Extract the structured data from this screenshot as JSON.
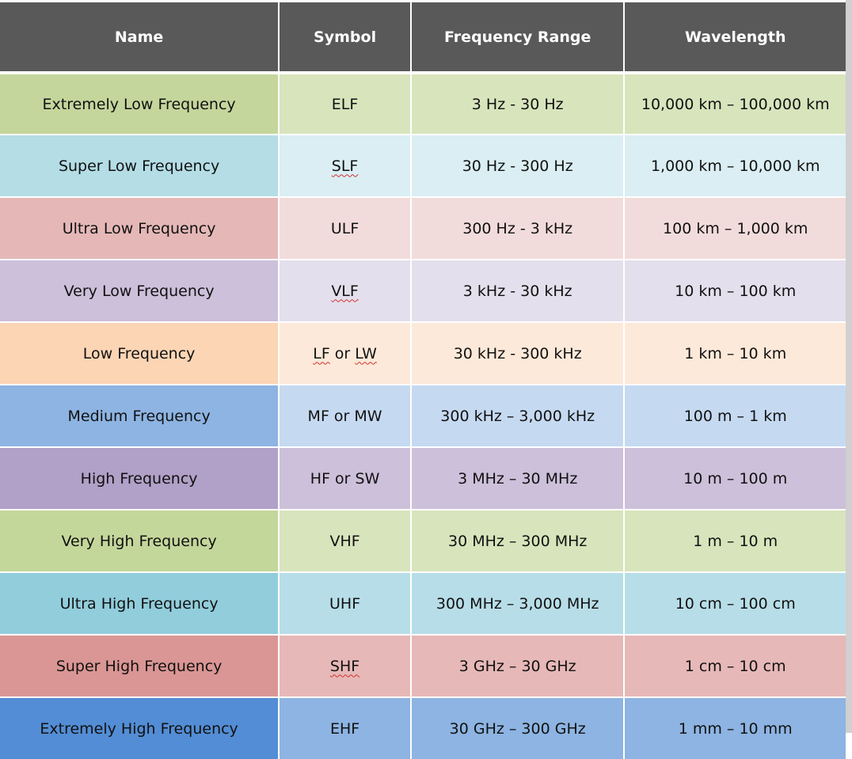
{
  "headers": [
    "Name",
    "Symbol",
    "Frequency Range",
    "Wavelength"
  ],
  "rows": [
    {
      "name": "Extremely Low Frequency",
      "symbol": "ELF",
      "range": "3 Hz - 30 Hz",
      "wavelength": "10,000 km – 100,000 km",
      "color_dark": "#c4d69c",
      "color_light": "#d8e4bc"
    },
    {
      "name": "Super Low Frequency",
      "symbol": "SLF",
      "range": "30 Hz - 300 Hz",
      "wavelength": "1,000 km – 10,000 km",
      "color_dark": "#b4dde6",
      "color_light": "#daeef3"
    },
    {
      "name": "Ultra Low Frequency",
      "symbol": "ULF",
      "range": "300 Hz - 3 kHz",
      "wavelength": "100 km – 1,000 km",
      "color_dark": "#e5b8b7",
      "color_light": "#f2dcdb"
    },
    {
      "name": "Very Low Frequency",
      "symbol": "VLF",
      "range": "3 kHz - 30 kHz",
      "wavelength": "10 km – 100 km",
      "color_dark": "#ccc0da",
      "color_light": "#e4dfec"
    },
    {
      "name": "Low Frequency",
      "symbol": "LF or LW",
      "range": "30 kHz - 300 kHz",
      "wavelength": "1 km – 10 km",
      "color_dark": "#fcd5b4",
      "color_light": "#fde9d9"
    },
    {
      "name": "Medium Frequency",
      "symbol": "MF or MW",
      "range": "300 kHz – 3,000 kHz",
      "wavelength": "100 m – 1 km",
      "color_dark": "#8db4e2",
      "color_light": "#c5d9f1"
    },
    {
      "name": "High Frequency",
      "symbol": "HF or SW",
      "range": "3 MHz – 30 MHz",
      "wavelength": "10 m – 100 m",
      "color_dark": "#b1a0c7",
      "color_light": "#ccc0da"
    },
    {
      "name": "Very High Frequency",
      "symbol": "VHF",
      "range": "30 MHz – 300 MHz",
      "wavelength": "1 m – 10 m",
      "color_dark": "#c4d79b",
      "color_light": "#d8e4bc"
    },
    {
      "name": "Ultra High Frequency",
      "symbol": "UHF",
      "range": "300 MHz – 3,000 MHz",
      "wavelength": "10 cm – 100 cm",
      "color_dark": "#92cddc",
      "color_light": "#b7dee8"
    },
    {
      "name": "Super High Frequency",
      "symbol": "SHF",
      "range": "3 GHz – 30 GHz",
      "wavelength": "1 cm – 10 cm",
      "color_dark": "#da9694",
      "color_light": "#e6b8b7"
    },
    {
      "name": "Extremely High Frequency",
      "symbol": "EHF",
      "range": "30 GHz – 300 GHz",
      "wavelength": "1 mm – 10 mm",
      "color_dark": "#538dd5",
      "color_light": "#8db4e2"
    }
  ]
}
